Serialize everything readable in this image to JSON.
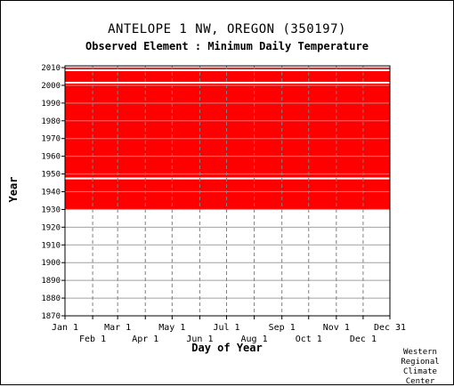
{
  "page": {
    "title": "ANTELOPE 1 NW, OREGON   (350197)",
    "subtitle": "Observed Element : Minimum Daily Temperature",
    "credit": [
      "Western",
      "Regional",
      "Climate",
      "Center"
    ]
  },
  "chart_data": {
    "type": "heatmap",
    "title": "ANTELOPE 1 NW, OREGON   (350197)",
    "subtitle": "Observed Element : Minimum Daily Temperature",
    "xlabel": "Day of Year",
    "ylabel": "Year",
    "x_ticks_upper": [
      "Jan 1",
      "Mar 1",
      "May 1",
      "Jul 1",
      "Sep 1",
      "Nov 1",
      "Dec 31"
    ],
    "x_ticks_lower": [
      "Feb 1",
      "Apr 1",
      "Jun 1",
      "Aug 1",
      "Oct 1",
      "Dec 1"
    ],
    "y_ticks": [
      2010,
      2000,
      1990,
      1980,
      1970,
      1960,
      1950,
      1940,
      1930,
      1920,
      1910,
      1900,
      1890,
      1880,
      1870
    ],
    "xlim": [
      1,
      365
    ],
    "ylim": [
      1870,
      2011
    ],
    "grid": true,
    "data_color": "#ff0000",
    "data_periods": [
      {
        "start_year": 1930,
        "end_year": 1946
      },
      {
        "start_year": 1948,
        "end_year": 2009
      }
    ],
    "gaps": [
      {
        "year": 1947,
        "day_start": 1,
        "day_end": 365
      },
      {
        "year": 2001,
        "day_start": 1,
        "day_end": 365
      },
      {
        "year": 2008,
        "day_start": 1,
        "day_end": 365
      }
    ]
  }
}
